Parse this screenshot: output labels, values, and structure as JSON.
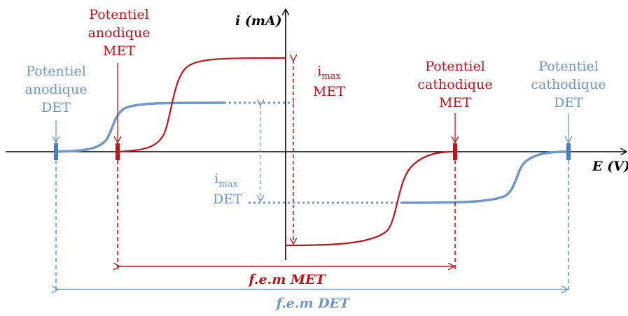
{
  "axes": {
    "y_label": "i (mA)",
    "x_label": "E (V)"
  },
  "labels": {
    "met_anodic": [
      "Potentiel",
      "anodique",
      "MET"
    ],
    "det_anodic": [
      "Potentiel",
      "anodique",
      "DET"
    ],
    "met_cathodic": [
      "Potentiel",
      "cathodique",
      "MET"
    ],
    "det_cathodic": [
      "Potentiel",
      "cathodique",
      "DET"
    ],
    "imax_met": {
      "main": "i",
      "sub": "max",
      "line2": "MET"
    },
    "imax_det": {
      "main": "i",
      "sub": "max",
      "line2": "DET"
    },
    "fem_met": "f.e.m MET",
    "fem_det": "f.e.m DET"
  },
  "colors": {
    "met": "#c0141c",
    "det": "#6f98c8",
    "axis": "#000000"
  }
}
